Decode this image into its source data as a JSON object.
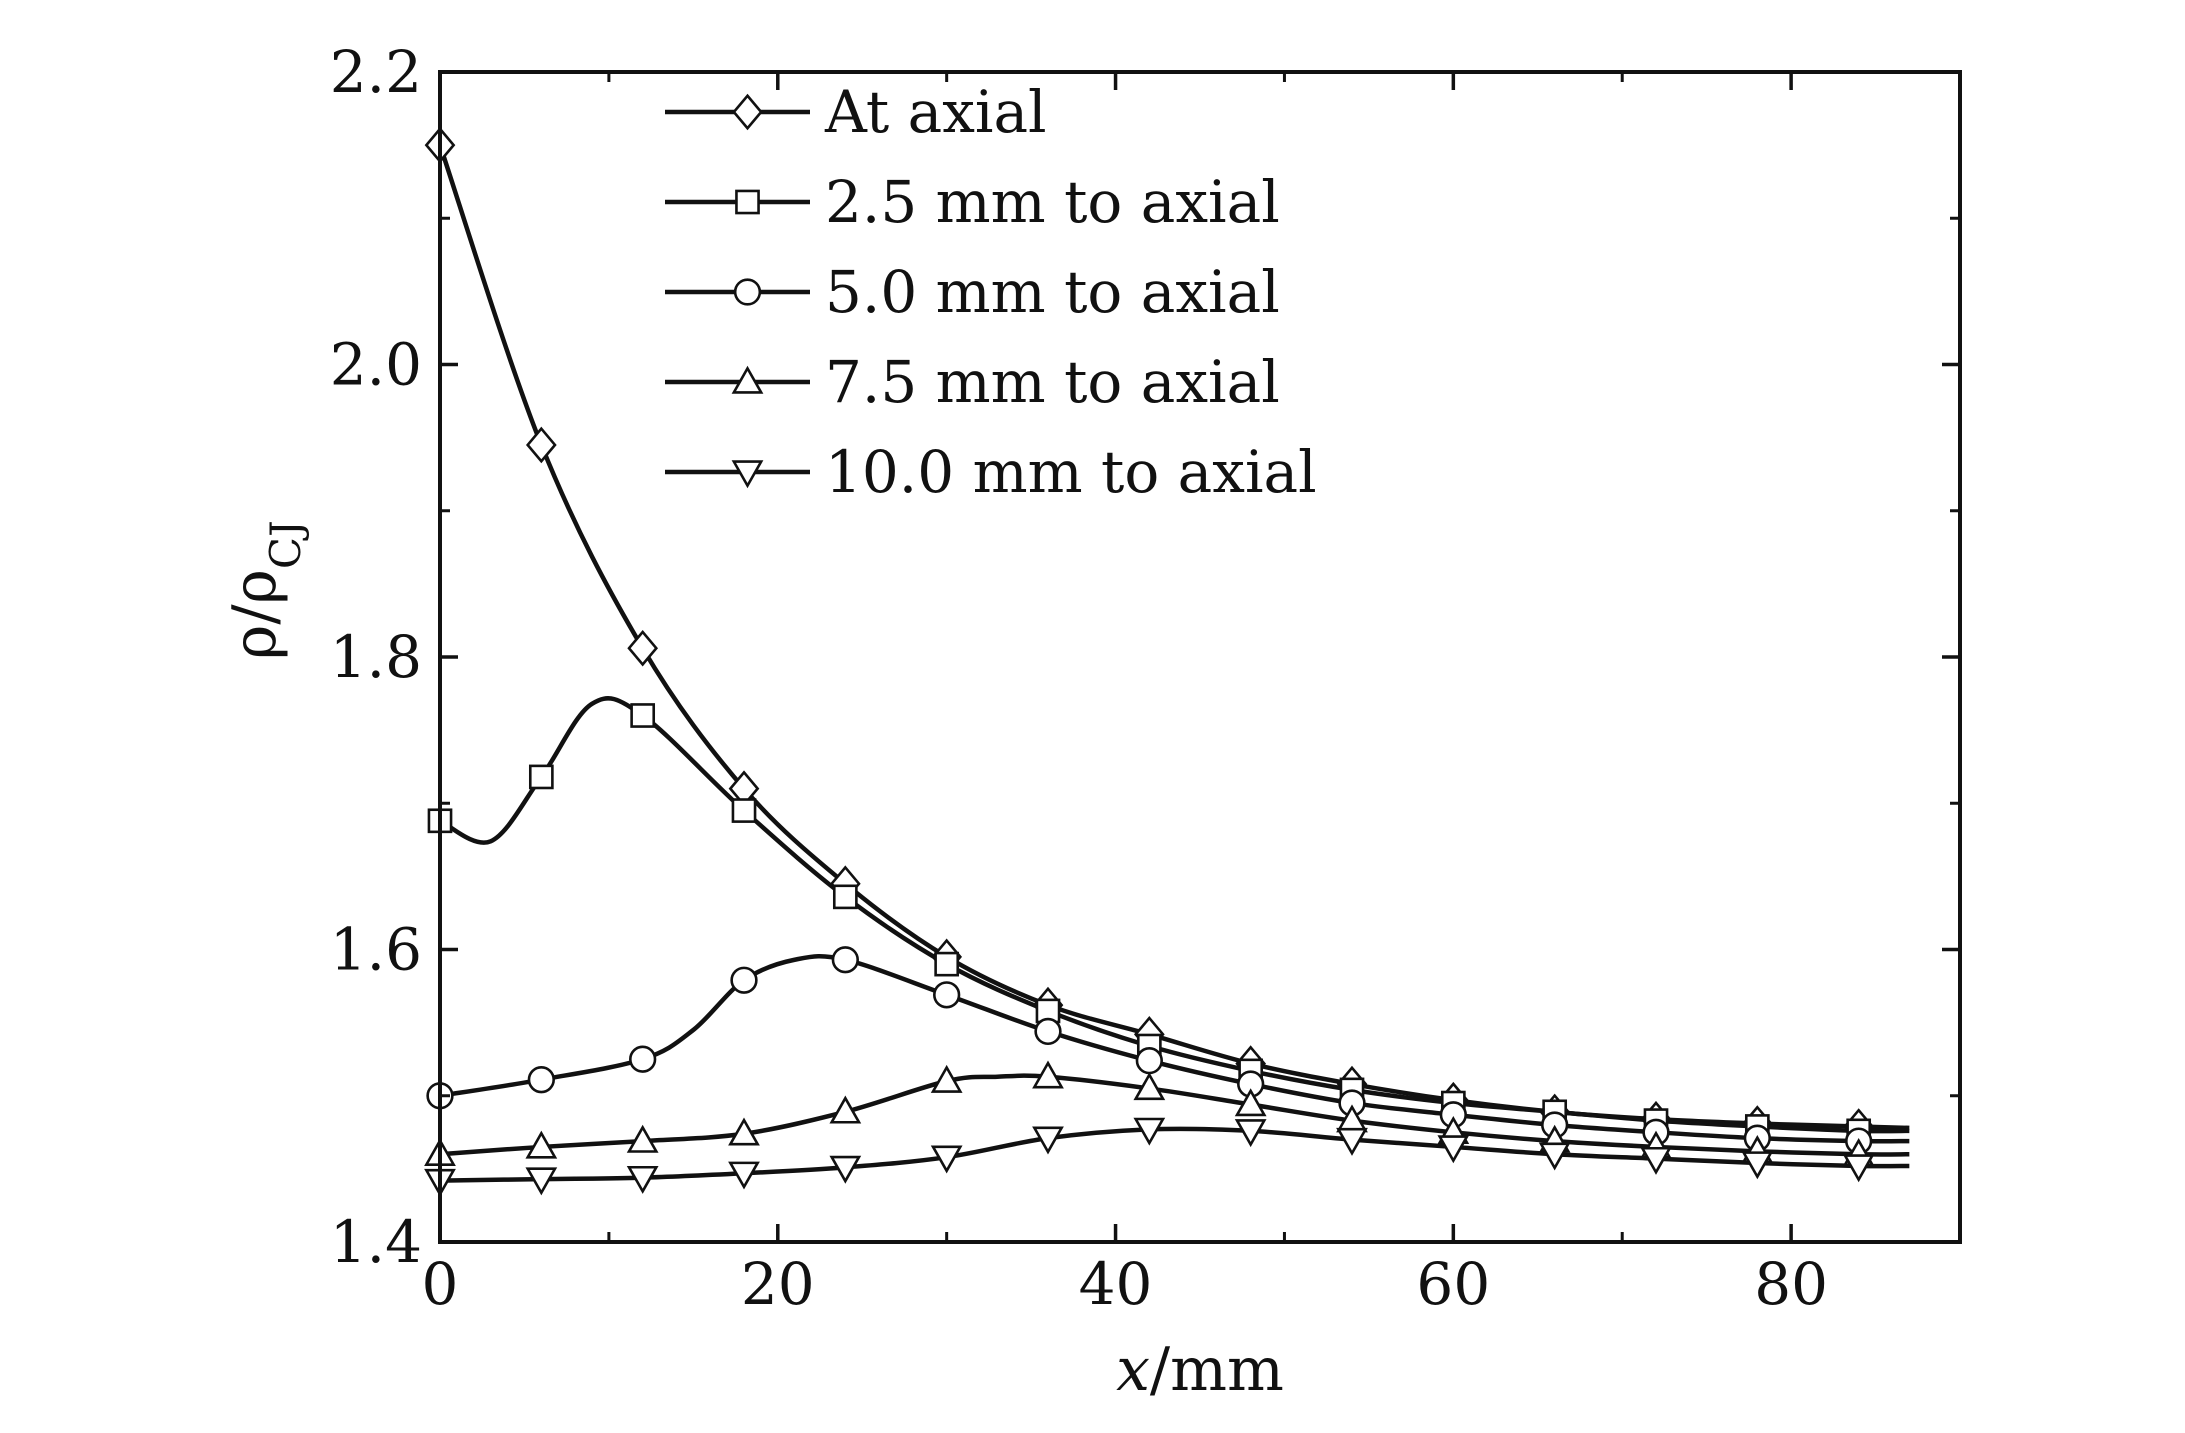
{
  "chart_data": {
    "type": "line",
    "xlabel": {
      "var": "x",
      "unit": "/mm"
    },
    "ylabel": {
      "base": "ρ/ρ",
      "sub": "CJ"
    },
    "xlim": [
      0,
      90
    ],
    "ylim": [
      1.4,
      2.2
    ],
    "xticks": [
      0,
      20,
      40,
      60,
      80
    ],
    "xtick_labels": [
      "0",
      "20",
      "40",
      "60",
      "80"
    ],
    "yticks": [
      1.4,
      1.6,
      1.8,
      2.0,
      2.2
    ],
    "ytick_labels": [
      "1.4",
      "1.6",
      "1.8",
      "2.0",
      "2.2"
    ],
    "grid": false,
    "legend_position": "top-center",
    "series": [
      {
        "name": "At axial",
        "marker": "diamond",
        "x": [
          0,
          6,
          12,
          18,
          24,
          30,
          36,
          42,
          48,
          54,
          60,
          66,
          72,
          78,
          84,
          87
        ],
        "y": [
          2.15,
          1.945,
          1.806,
          1.71,
          1.645,
          1.595,
          1.562,
          1.542,
          1.522,
          1.508,
          1.497,
          1.489,
          1.484,
          1.481,
          1.479,
          1.478
        ]
      },
      {
        "name": "2.5 mm to axial",
        "marker": "square",
        "x": [
          0,
          3,
          6,
          9,
          12,
          18,
          24,
          30,
          36,
          42,
          48,
          54,
          60,
          66,
          72,
          78,
          84,
          87
        ],
        "y": [
          1.688,
          1.674,
          1.718,
          1.768,
          1.76,
          1.695,
          1.636,
          1.59,
          1.558,
          1.534,
          1.517,
          1.504,
          1.495,
          1.489,
          1.483,
          1.479,
          1.476,
          1.476
        ]
      },
      {
        "name": "5.0 mm to axial",
        "marker": "circle",
        "x": [
          0,
          6,
          12,
          15,
          18,
          21,
          24,
          30,
          36,
          42,
          48,
          54,
          60,
          66,
          72,
          78,
          84,
          87
        ],
        "y": [
          1.5,
          1.511,
          1.525,
          1.545,
          1.579,
          1.593,
          1.593,
          1.569,
          1.544,
          1.524,
          1.508,
          1.495,
          1.487,
          1.48,
          1.475,
          1.471,
          1.469,
          1.469
        ]
      },
      {
        "name": "7.5 mm to axial",
        "marker": "triangle-up",
        "x": [
          0,
          6,
          12,
          18,
          24,
          30,
          33,
          36,
          42,
          48,
          54,
          60,
          66,
          72,
          78,
          84,
          87
        ],
        "y": [
          1.46,
          1.465,
          1.469,
          1.474,
          1.489,
          1.51,
          1.513,
          1.513,
          1.505,
          1.494,
          1.483,
          1.475,
          1.469,
          1.465,
          1.462,
          1.46,
          1.46
        ]
      },
      {
        "name": "10.0 mm to axial",
        "marker": "triangle-down",
        "x": [
          0,
          6,
          12,
          18,
          24,
          30,
          36,
          42,
          48,
          54,
          60,
          66,
          72,
          78,
          84,
          87
        ],
        "y": [
          1.442,
          1.443,
          1.444,
          1.447,
          1.451,
          1.458,
          1.471,
          1.477,
          1.476,
          1.47,
          1.465,
          1.46,
          1.457,
          1.454,
          1.452,
          1.452
        ]
      }
    ]
  }
}
